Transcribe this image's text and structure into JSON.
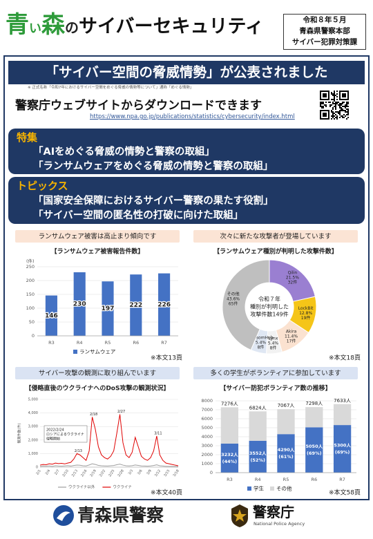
{
  "header": {
    "title_parts": [
      "青",
      "い",
      "森",
      "の",
      "サイバーセキュリティ"
    ],
    "issuer": [
      "令和８年５月",
      "青森県警察本部",
      "サイバー犯罪対策課"
    ]
  },
  "banner": {
    "title": "「サイバー空間の脅威情勢」が公表されました",
    "note": "※ 正式名称「令和7年におけるサイバー空間をめぐる脅威の情勢等について」通称「めぐる情勢」"
  },
  "download": {
    "text": "警察庁ウェブサイトからダウンロードできます",
    "url": "https://www.npa.go.jp/publications/statistics/cybersecurity/index.html"
  },
  "feature": {
    "label": "特集",
    "items": [
      "「AIをめぐる脅威の情勢と警察の取組」",
      "「ランサムウェアをめぐる脅威の情勢と警察の取組」"
    ]
  },
  "topics": {
    "label": "トピックス",
    "items": [
      "「国家安全保障におけるサイバー警察の果たす役割」",
      "「サイバー空間の匿名性の打破に向けた取組」"
    ]
  },
  "chart_data": [
    {
      "type": "bar",
      "caption": "ランサムウェア被害は高止まり傾向です",
      "caption_bg": "#fbe4d5",
      "title": "【ランサムウェア被害報告件数】",
      "y_label": "(件)",
      "categories": [
        "R3",
        "R4",
        "R5",
        "R6",
        "R7"
      ],
      "series": [
        {
          "name": "ランサムウェア",
          "color": "#4472c4",
          "values": [
            146,
            230,
            197,
            222,
            226
          ]
        }
      ],
      "ylim": [
        0,
        250
      ],
      "yticks": [
        0,
        50,
        100,
        150,
        200,
        250
      ],
      "grid": true,
      "legend": "bottom",
      "note": "※本文13頁"
    },
    {
      "type": "pie",
      "donut": true,
      "caption": "次々に新たな攻撃者が登場しています",
      "caption_bg": "#fbe4d5",
      "title": "【ランサムウェア種別が判明した攻撃件数】",
      "categories": [
        "Qilin",
        "LockBit",
        "Akira",
        "Lynx",
        "RansomHub",
        "その他"
      ],
      "values": [
        21.5,
        12.8,
        11.4,
        5.4,
        5.4,
        43.6
      ],
      "value_labels": [
        "21.5%",
        "12.8%",
        "11.4%",
        "5.4%",
        "5.4%",
        "43.6%"
      ],
      "counts": [
        32,
        19,
        17,
        8,
        8,
        65
      ],
      "count_labels": [
        "32件",
        "19件",
        "17件",
        "8件",
        "8件",
        "65件"
      ],
      "colors": [
        "#9a7fd1",
        "#f5c518",
        "#fbe2d0",
        "#f2f2f2",
        "#dfe7f3",
        "#bfbfbf"
      ],
      "center_text": [
        "令和７年",
        "種別が判明した",
        "攻撃件数149件"
      ],
      "note": "※本文18頁"
    },
    {
      "type": "line",
      "caption": "サイバー攻撃の観測に取り組んでいます",
      "caption_bg": "#dae3f3",
      "title": "【侵略直後のウクライナへのDoS攻撃の観測状況】",
      "y_label": "観測件数(件)",
      "categories": [
        "2/1",
        null,
        null,
        "2/4",
        null,
        null,
        "2/7",
        null,
        null,
        "2/10",
        null,
        null,
        "2/13",
        null,
        null,
        "2/16",
        null,
        null,
        "2/19",
        null,
        null,
        "2/22",
        null,
        null,
        "2/25",
        null,
        null,
        "2/28",
        null,
        null,
        "3/3",
        null,
        null,
        "3/6",
        null,
        null,
        "3/9",
        null,
        null,
        "3/12",
        null,
        null,
        "3/15",
        null,
        null,
        "3/18"
      ],
      "series": [
        {
          "name": "ウクライナ以外",
          "color": "#9e9e9e",
          "values": [
            60,
            80,
            70,
            90,
            60,
            100,
            80,
            70,
            90,
            110,
            80,
            120,
            150,
            140,
            100,
            90,
            160,
            250,
            200,
            130,
            100,
            90,
            80,
            100,
            120,
            180,
            220,
            150,
            100,
            90,
            110,
            160,
            130,
            90,
            80,
            70,
            90,
            120,
            170,
            100,
            80,
            60,
            60,
            50,
            50,
            40
          ]
        },
        {
          "name": "ウクライナ",
          "color": "#e00000",
          "values": [
            150,
            200,
            180,
            250,
            220,
            300,
            260,
            280,
            240,
            300,
            350,
            600,
            1000,
            900,
            700,
            500,
            1200,
            3700,
            2800,
            1500,
            900,
            700,
            600,
            800,
            1200,
            2500,
            3900,
            1800,
            900,
            700,
            1100,
            2200,
            1500,
            800,
            600,
            500,
            700,
            1200,
            2300,
            900,
            500,
            300,
            250,
            200,
            150,
            100
          ]
        }
      ],
      "annotations": [
        "2/13",
        "2/18",
        "2/27",
        "3/11"
      ],
      "annotation_box": [
        "2022/2/24",
        "ロシアによるウクライナ",
        "侵略開始"
      ],
      "ylim": [
        0,
        5000
      ],
      "yticks": [
        0,
        {
          "value": 1000,
          "label": "1,000"
        },
        {
          "value": 2000,
          "label": "2,000"
        },
        {
          "value": 3000,
          "label": "3,000"
        },
        {
          "value": 4000,
          "label": "4,000"
        },
        {
          "value": 5000,
          "label": "5,000"
        }
      ],
      "grid": true,
      "legend": "bottom",
      "note": "※本文40頁"
    },
    {
      "type": "bar",
      "stacked": true,
      "caption": "多くの学生がボランティアに参加しています",
      "caption_bg": "#dae3f3",
      "title": "【サイバー防犯ボランティア数の推移】",
      "categories": [
        "R3",
        "R4",
        "R5",
        "R6",
        "R7"
      ],
      "series": [
        {
          "name": "学生",
          "color": "#4472c4",
          "values": [
            3232,
            3552,
            4290,
            5050,
            5300
          ],
          "value_labels": [
            "3232人",
            "3552人",
            "4290人",
            "5050人",
            "5300人"
          ],
          "share_labels": [
            "(44%)",
            "(52%)",
            "(61%)",
            "(69%)",
            "(69%)"
          ]
        },
        {
          "name": "その他",
          "color": "#d9d9d9",
          "values": [
            4044,
            3272,
            2777,
            2248,
            2333
          ]
        }
      ],
      "total_labels": [
        "7276人",
        "6824人",
        "7067人",
        "7298人",
        "7633人"
      ],
      "ylim": [
        0,
        8000
      ],
      "yticks": [
        0,
        1000,
        2000,
        3000,
        4000,
        5000,
        6000,
        7000,
        8000
      ],
      "grid": true,
      "legend": "bottom",
      "note": "※本文58頁"
    }
  ],
  "footer": {
    "prefecture": "青森県警察",
    "agency": "警察庁",
    "agency_en": "National Police Agency"
  }
}
